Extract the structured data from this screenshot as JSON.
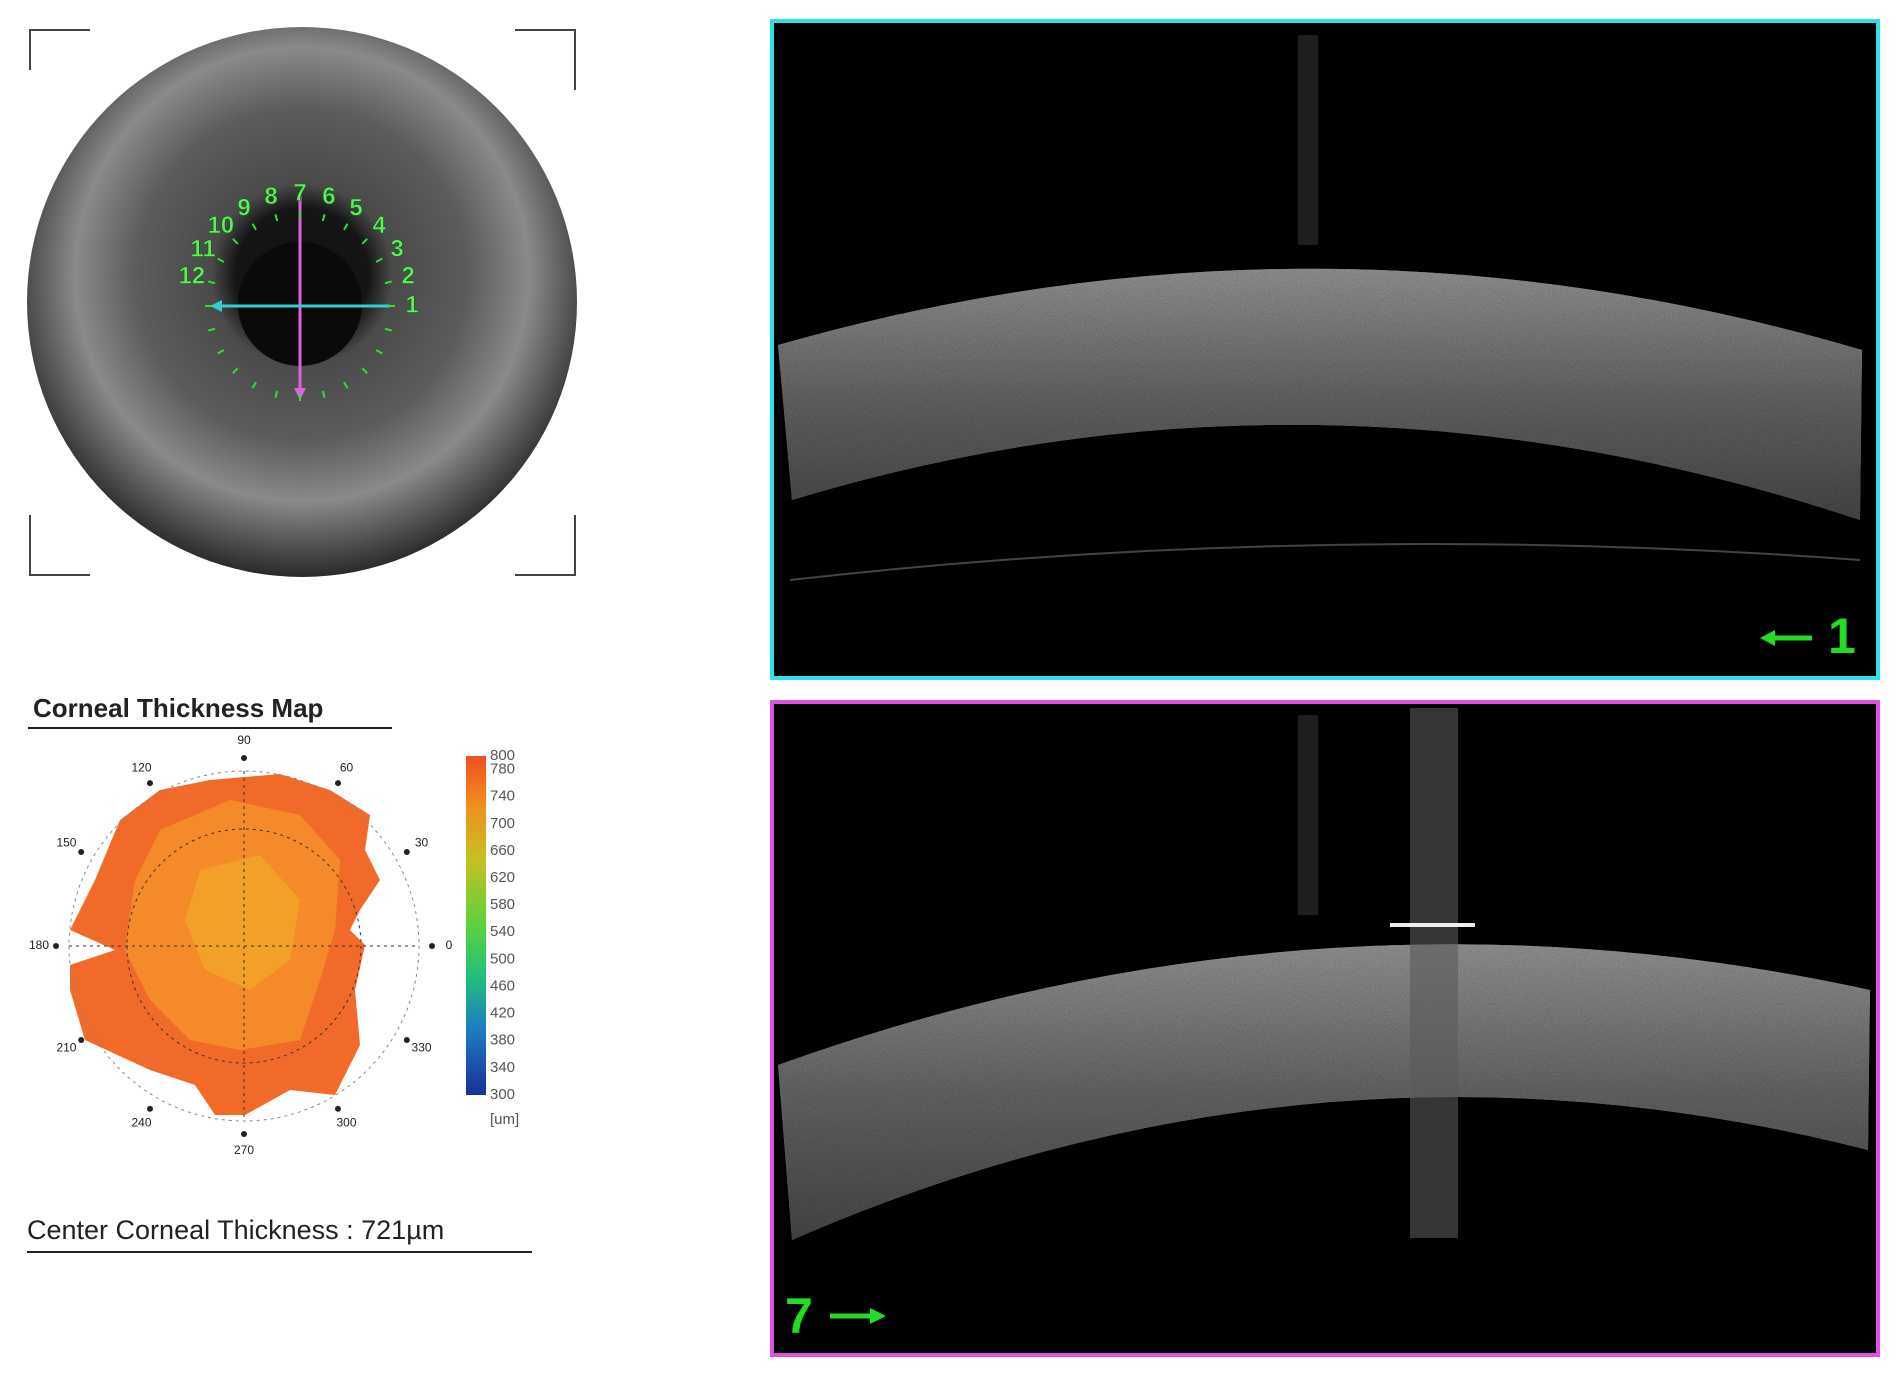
{
  "eye_photo": {
    "clock_labels": [
      "1",
      "2",
      "3",
      "4",
      "5",
      "6",
      "7",
      "8",
      "9",
      "10",
      "11",
      "12"
    ]
  },
  "thickness_map": {
    "title": "Corneal Thickness Map",
    "angle_labels": [
      "0",
      "30",
      "60",
      "90",
      "120",
      "150",
      "180",
      "210",
      "240",
      "270",
      "300",
      "330"
    ],
    "colorbar_labels": [
      800,
      780,
      740,
      700,
      660,
      620,
      580,
      540,
      500,
      460,
      420,
      380,
      340,
      300
    ],
    "unit": "[um]"
  },
  "center_thickness": "Center Corneal Thickness : 721µm",
  "scans": [
    {
      "label": "1"
    },
    {
      "label": "7"
    }
  ]
}
